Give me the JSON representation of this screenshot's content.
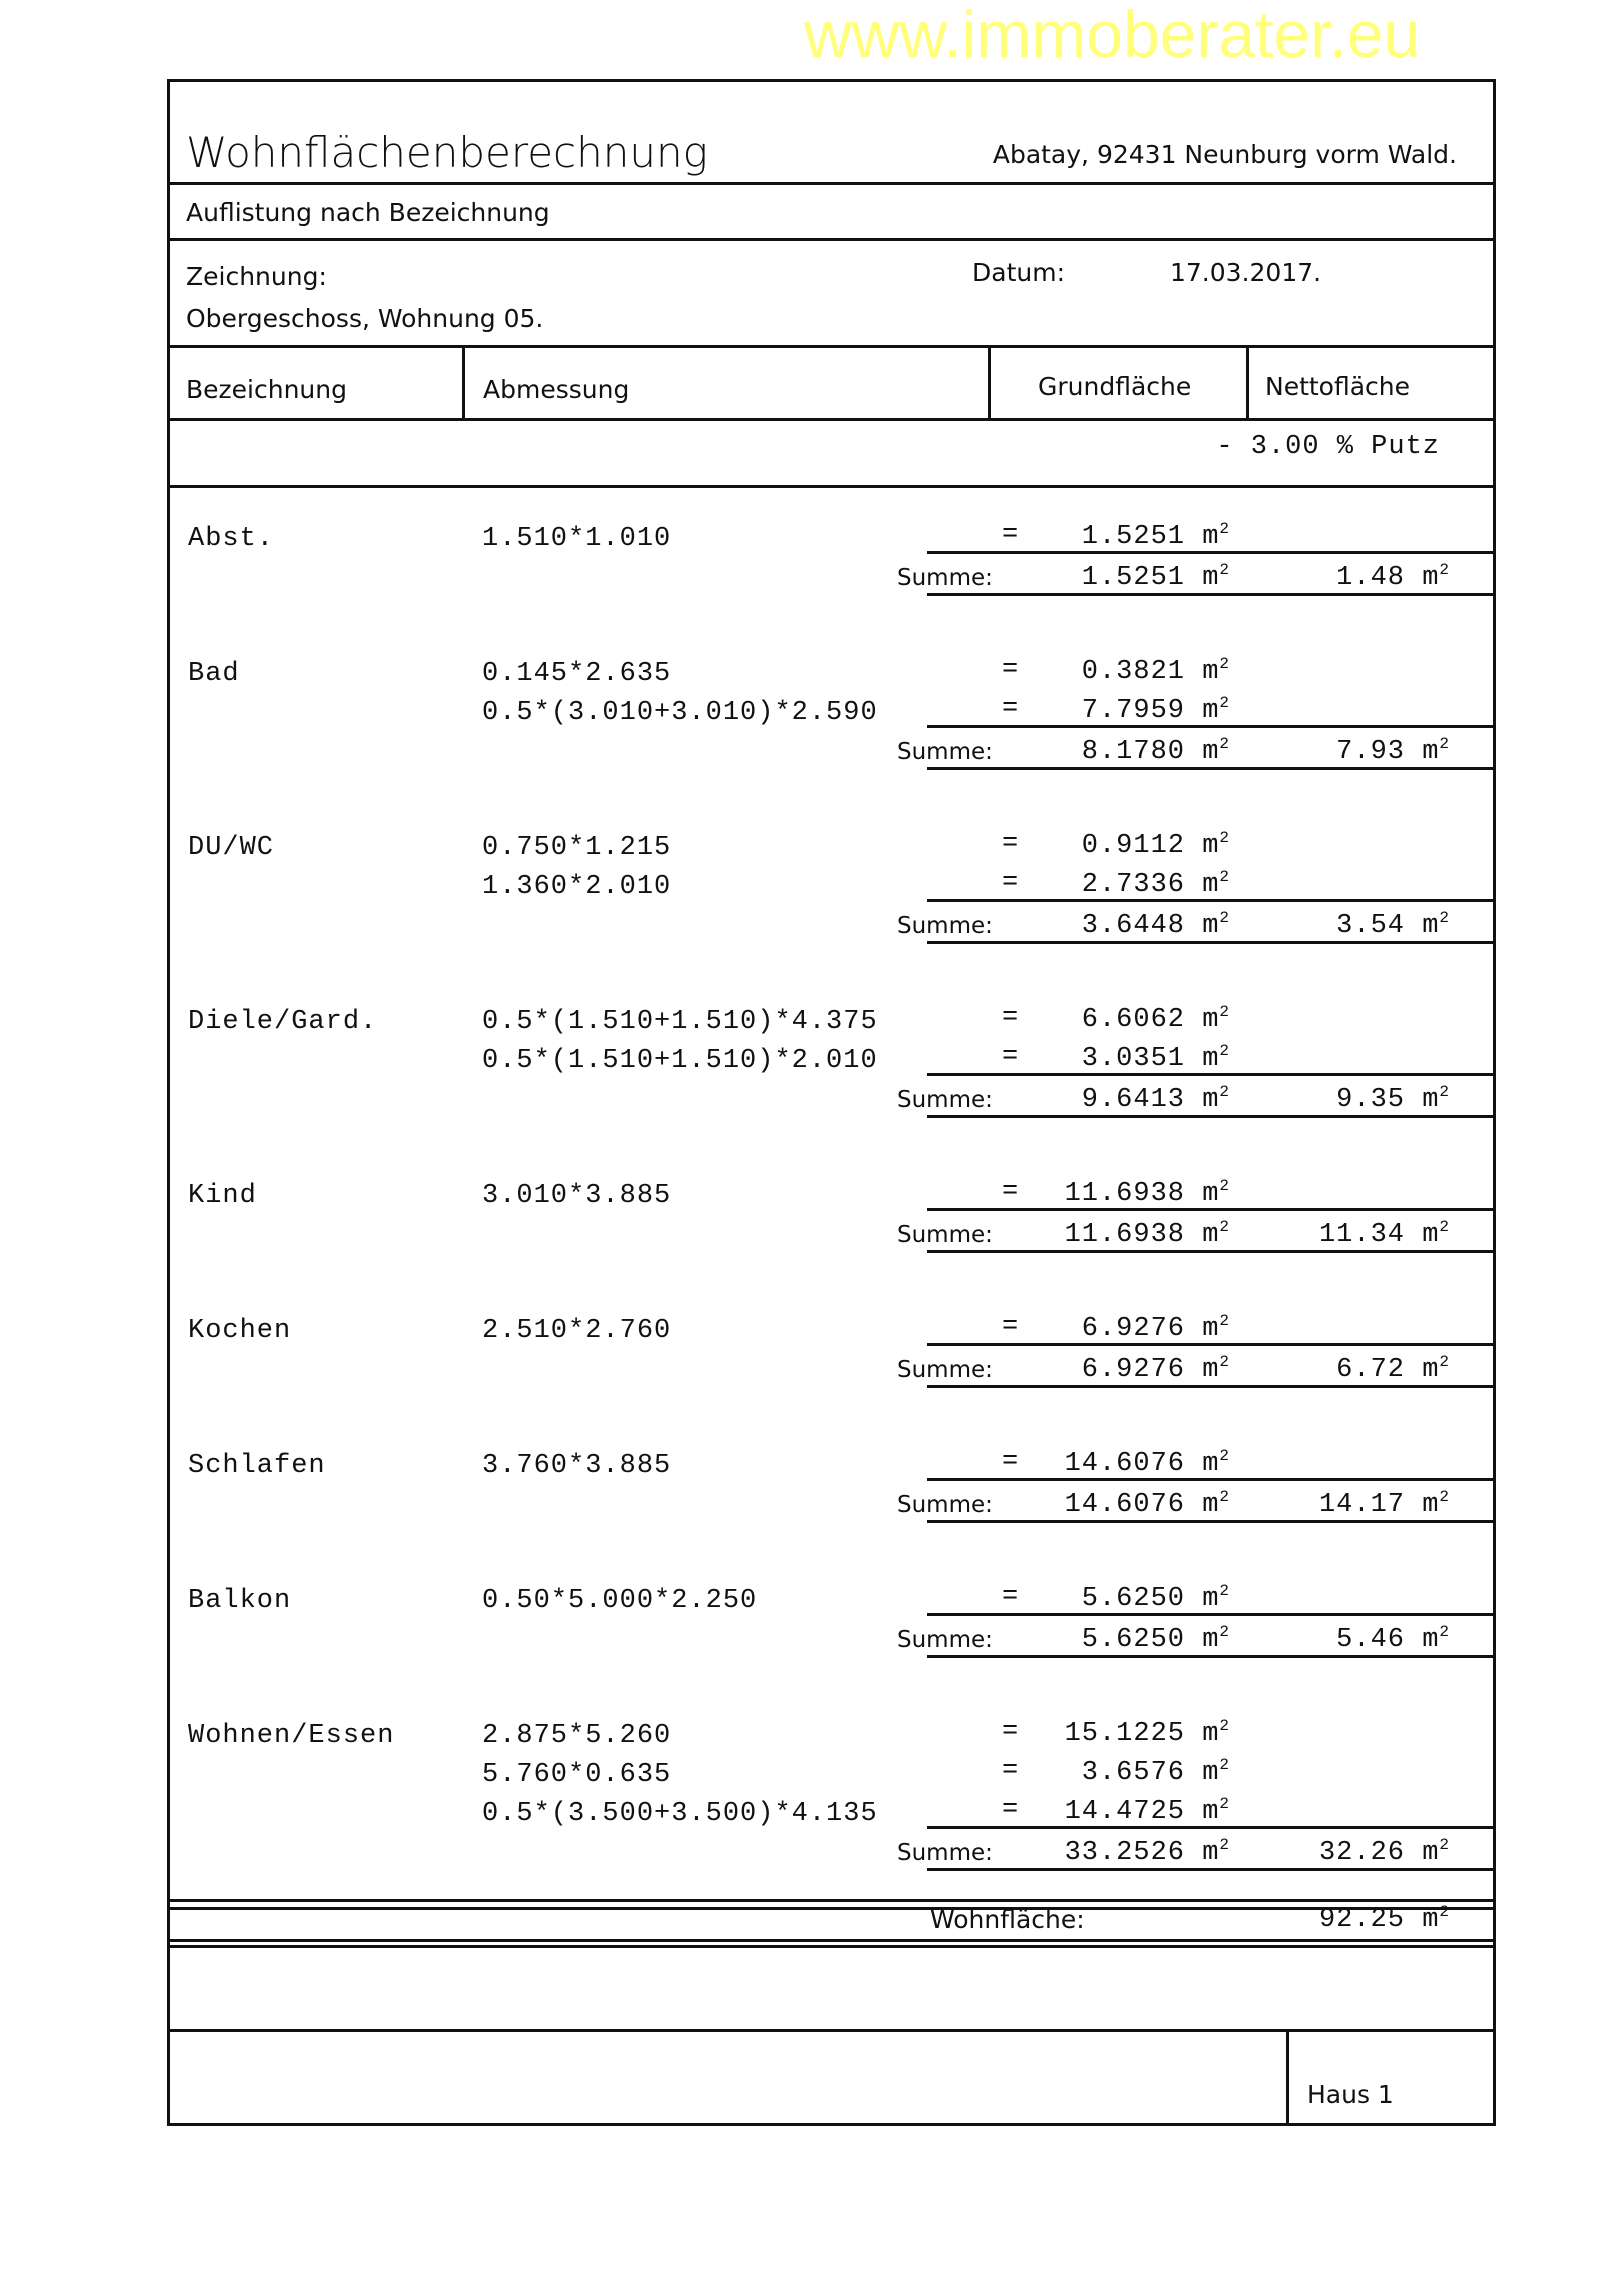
{
  "watermark": "www.immoberater.eu",
  "header": {
    "title": "Wohnflächenberechnung",
    "address": "Abatay, 92431 Neunburg vorm Wald.",
    "subtitle": "Auflistung nach Bezeichnung",
    "drawing_label": "Zeichnung:",
    "drawing_value": "Obergeschoss, Wohnung 05.",
    "date_label": "Datum:",
    "date_value": "17.03.2017."
  },
  "columns": {
    "name": "Bezeichnung",
    "dimension": "Abmessung",
    "gross": "Grundfläche",
    "net": "Nettofläche"
  },
  "deduction": "- 3.00 % Putz",
  "unit": "m",
  "unit_exp": "2",
  "eq": "=",
  "sum_label": "Summe:",
  "rooms": [
    {
      "name": "Abst.",
      "lines": [
        {
          "expr": "1.510*1.010",
          "value": "1.5251"
        }
      ],
      "sum": "1.5251",
      "net": "1.48"
    },
    {
      "name": "Bad",
      "lines": [
        {
          "expr": "0.145*2.635",
          "value": "0.3821"
        },
        {
          "expr": "0.5*(3.010+3.010)*2.590",
          "value": "7.7959"
        }
      ],
      "sum": "8.1780",
      "net": "7.93"
    },
    {
      "name": "DU/WC",
      "lines": [
        {
          "expr": "0.750*1.215",
          "value": "0.9112"
        },
        {
          "expr": "1.360*2.010",
          "value": "2.7336"
        }
      ],
      "sum": "3.6448",
      "net": "3.54"
    },
    {
      "name": "Diele/Gard.",
      "lines": [
        {
          "expr": "0.5*(1.510+1.510)*4.375",
          "value": "6.6062"
        },
        {
          "expr": "0.5*(1.510+1.510)*2.010",
          "value": "3.0351"
        }
      ],
      "sum": "9.6413",
      "net": "9.35"
    },
    {
      "name": "Kind",
      "lines": [
        {
          "expr": "3.010*3.885",
          "value": "11.6938"
        }
      ],
      "sum": "11.6938",
      "net": "11.34"
    },
    {
      "name": "Kochen",
      "lines": [
        {
          "expr": "2.510*2.760",
          "value": "6.9276"
        }
      ],
      "sum": "6.9276",
      "net": "6.72"
    },
    {
      "name": "Schlafen",
      "lines": [
        {
          "expr": "3.760*3.885",
          "value": "14.6076"
        }
      ],
      "sum": "14.6076",
      "net": "14.17"
    },
    {
      "name": "Balkon",
      "lines": [
        {
          "expr": "0.50*5.000*2.250",
          "value": "5.6250"
        }
      ],
      "sum": "5.6250",
      "net": "5.46"
    },
    {
      "name": "Wohnen/Essen",
      "lines": [
        {
          "expr": "2.875*5.260",
          "value": "15.1225"
        },
        {
          "expr": "5.760*0.635",
          "value": "3.6576"
        },
        {
          "expr": "0.5*(3.500+3.500)*4.135",
          "value": "14.4725"
        }
      ],
      "sum": "33.2526",
      "net": "32.26"
    }
  ],
  "total": {
    "label": "Wohnfläche:",
    "value": "92.25"
  },
  "footer": {
    "house": "Haus 1"
  }
}
